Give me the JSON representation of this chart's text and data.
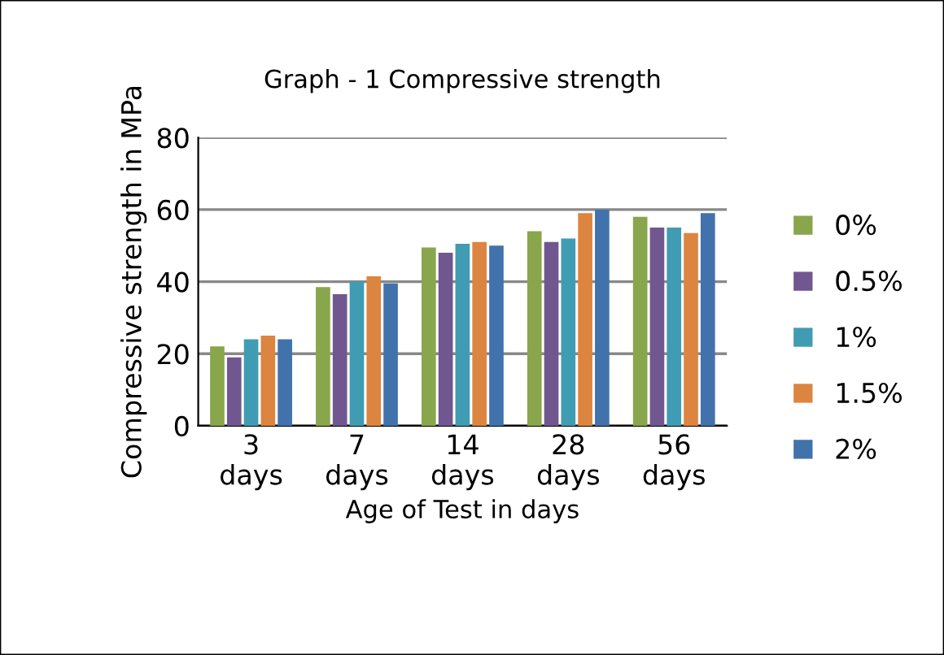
{
  "chart_data": {
    "type": "bar",
    "title": "Graph - 1 Compressive strength",
    "xlabel": "Age of Test in days",
    "ylabel": "Compressive strength in MPa",
    "categories": [
      "3\ndays",
      "7\ndays",
      "14\ndays",
      "28\ndays",
      "56\ndays"
    ],
    "series": [
      {
        "name": "0%",
        "color": "#8aa64c",
        "values": [
          22,
          38.5,
          49.5,
          54,
          58
        ]
      },
      {
        "name": "0.5%",
        "color": "#71578f",
        "values": [
          19,
          36.5,
          48,
          51,
          55
        ]
      },
      {
        "name": "1%",
        "color": "#409cb2",
        "values": [
          24,
          40,
          50.5,
          52,
          55
        ]
      },
      {
        "name": "1.5%",
        "color": "#dc8540",
        "values": [
          25,
          41.5,
          51,
          59,
          53.5
        ]
      },
      {
        "name": "2%",
        "color": "#4272ac",
        "values": [
          24,
          39.5,
          50,
          60,
          59
        ]
      }
    ],
    "ylim": [
      0,
      80
    ],
    "yticks": [
      0,
      20,
      40,
      60,
      80
    ],
    "grid": "y",
    "legend": "right"
  }
}
